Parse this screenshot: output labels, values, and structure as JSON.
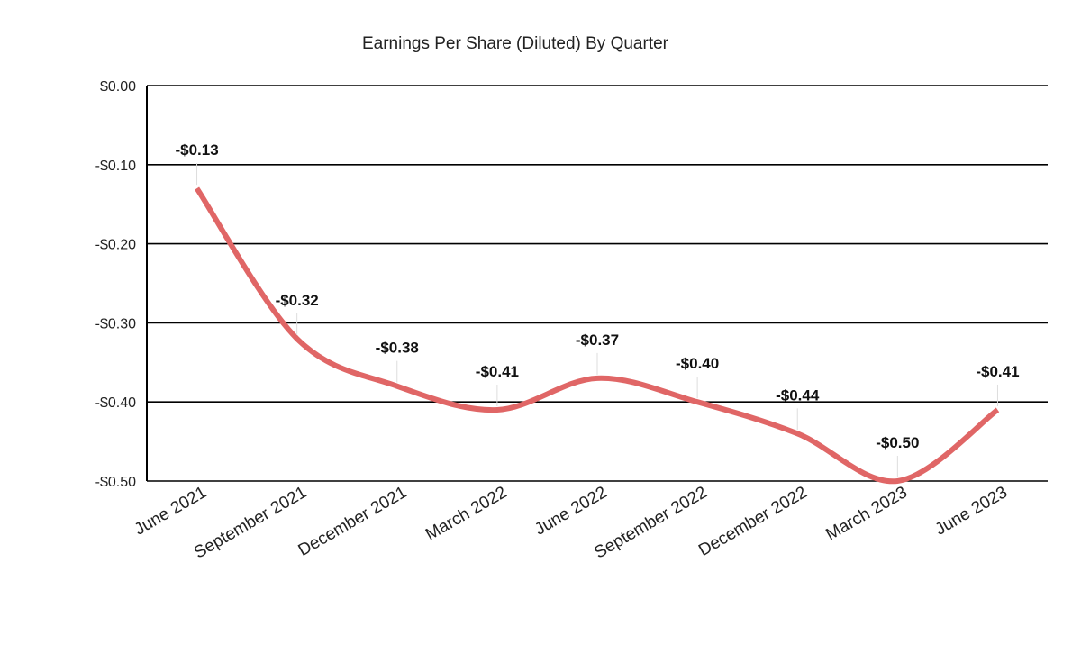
{
  "chart_data": {
    "type": "line",
    "title": "Earnings Per Share (Diluted) By Quarter",
    "xlabel": "",
    "ylabel": "",
    "categories": [
      "June 2021",
      "September 2021",
      "December 2021",
      "March 2022",
      "June 2022",
      "September 2022",
      "December 2022",
      "March 2023",
      "June 2023"
    ],
    "values": [
      -0.13,
      -0.32,
      -0.38,
      -0.41,
      -0.37,
      -0.4,
      -0.44,
      -0.5,
      -0.41
    ],
    "data_labels": [
      "-$0.13",
      "-$0.32",
      "-$0.38",
      "-$0.41",
      "-$0.37",
      "-$0.40",
      "-$0.44",
      "-$0.50",
      "-$0.41"
    ],
    "ylim": [
      -0.5,
      0
    ],
    "yticks": [
      0,
      -0.1,
      -0.2,
      -0.3,
      -0.4,
      -0.5
    ],
    "ytick_labels": [
      "$0.00",
      "-$0.10",
      "-$0.20",
      "-$0.30",
      "-$0.40",
      "-$0.50"
    ],
    "grid": true,
    "smooth": true,
    "legend": "none",
    "line_color": "#e06666"
  }
}
